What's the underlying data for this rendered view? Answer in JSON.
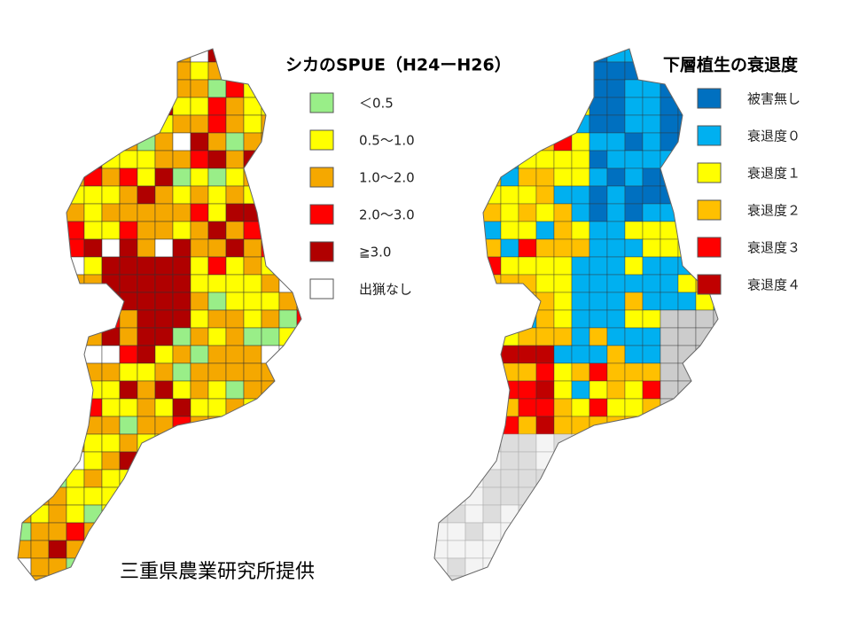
{
  "left_legend": {
    "title": "シカのSPUE（H24ーH26）",
    "items": [
      {
        "label": "＜0.5",
        "color": "#99ee88"
      },
      {
        "label": "0.5～1.0",
        "color": "#ffff00"
      },
      {
        "label": "1.0～2.0",
        "color": "#f5a800"
      },
      {
        "label": "2.0～3.0",
        "color": "#ff0000"
      },
      {
        "label": "≧3.0",
        "color": "#b00000"
      },
      {
        "label": "出猟なし",
        "color": "#ffffff"
      }
    ]
  },
  "right_legend": {
    "title": "下層植生の衰退度",
    "items": [
      {
        "label": "被害無し",
        "color": "#0070c0"
      },
      {
        "label": "衰退度０",
        "color": "#00b0f0"
      },
      {
        "label": "衰退度１",
        "color": "#ffff00"
      },
      {
        "label": "衰退度２",
        "color": "#ffc000"
      },
      {
        "label": "衰退度３",
        "color": "#ff0000"
      },
      {
        "label": "衰退度４",
        "color": "#c00000"
      }
    ]
  },
  "credit": "三重県農業研究所提供"
}
